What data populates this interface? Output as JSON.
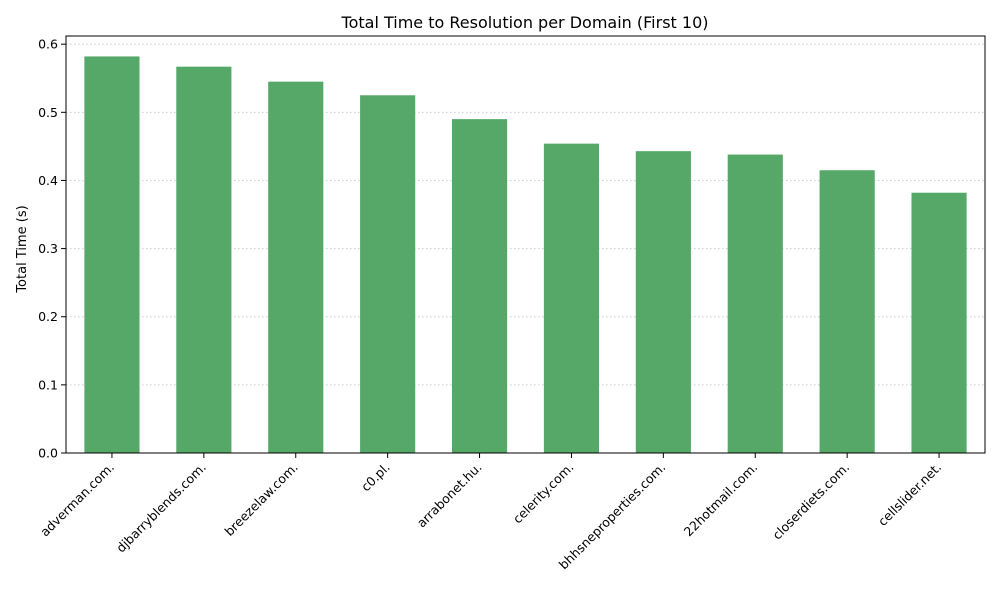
{
  "chart_data": {
    "type": "bar",
    "title": "Total Time to Resolution per Domain (First 10)",
    "xlabel": "",
    "ylabel": "Total Time (s)",
    "categories": [
      "adverman.com.",
      "djbarryblends.com.",
      "breezelaw.com.",
      "c0.pl.",
      "arrabonet.hu.",
      "celerity.com.",
      "bhhsneproperties.com.",
      "22hotmail.com.",
      "closerdiets.com.",
      "cellslider.net."
    ],
    "values": [
      0.582,
      0.567,
      0.545,
      0.525,
      0.49,
      0.454,
      0.443,
      0.438,
      0.415,
      0.382
    ],
    "ylim": [
      0,
      0.612
    ],
    "yticks": [
      0.0,
      0.1,
      0.2,
      0.3,
      0.4,
      0.5,
      0.6
    ],
    "ytick_labels": [
      "0.0",
      "0.1",
      "0.2",
      "0.3",
      "0.4",
      "0.5",
      "0.6"
    ],
    "grid": "y-dotted",
    "bar_color": "#55a868",
    "grid_color": "#cccccc"
  }
}
